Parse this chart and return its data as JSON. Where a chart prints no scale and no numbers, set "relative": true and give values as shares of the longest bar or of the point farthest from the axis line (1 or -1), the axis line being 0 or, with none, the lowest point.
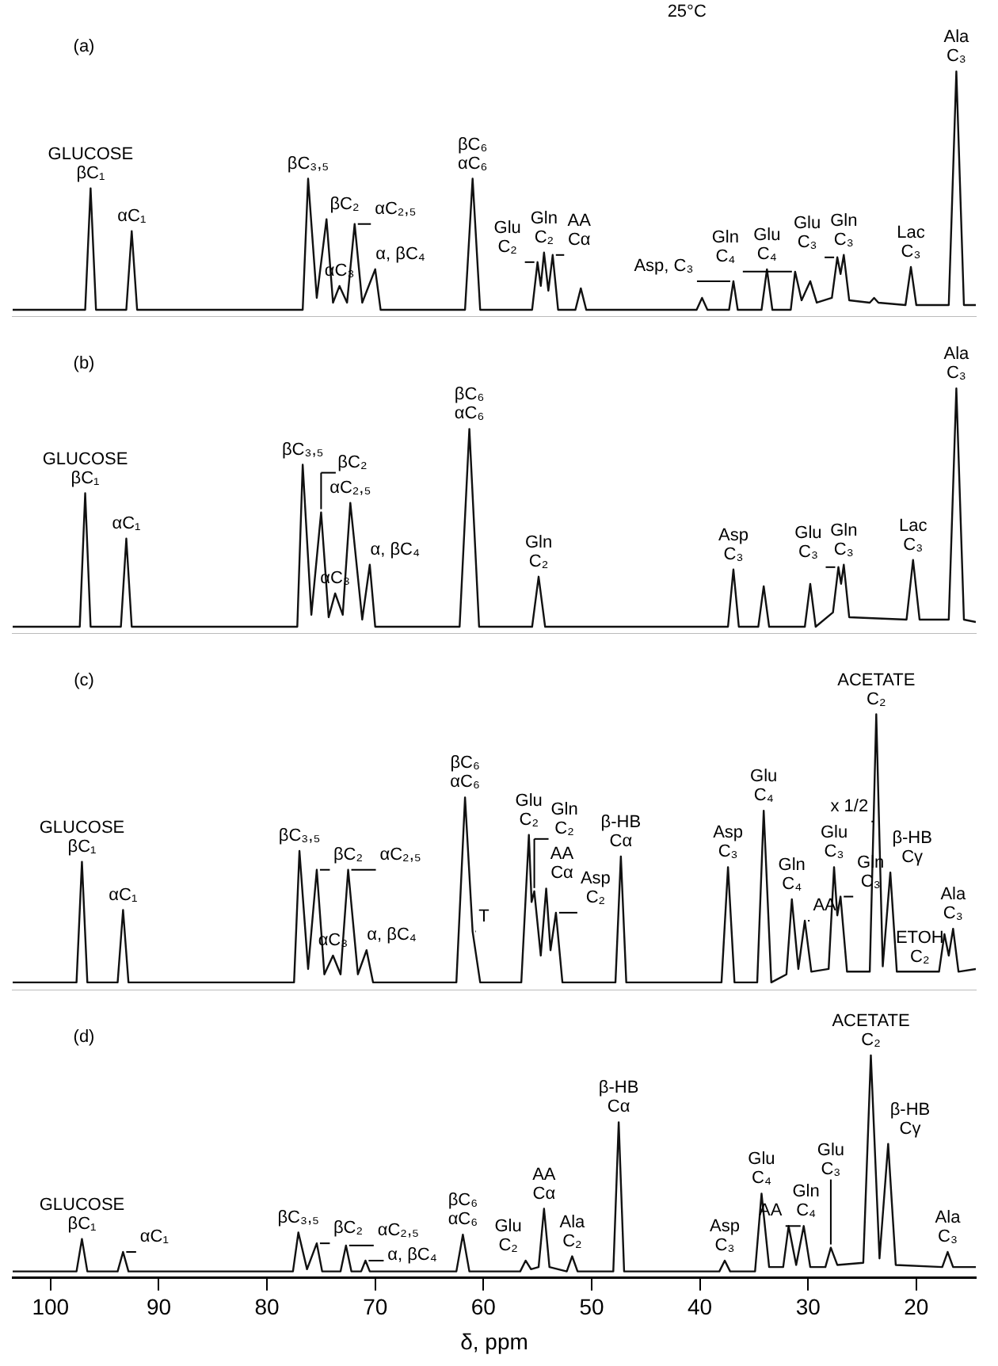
{
  "chart_data": [
    {
      "type": "line",
      "relative": true,
      "color": "#111111",
      "marker": "none",
      "tick_labels": false,
      "xlim": [
        103.5,
        14.5
      ],
      "x": [
        103.5,
        96.8,
        96.3,
        95.8,
        93.0,
        92.5,
        92.0,
        76.7,
        76.2,
        75.4,
        74.5,
        73.9,
        73.3,
        72.6,
        71.9,
        71.2,
        70.0,
        69.5,
        61.7,
        61.0,
        60.3,
        55.5,
        55.0,
        54.7,
        54.4,
        54.0,
        53.6,
        53.1,
        51.5,
        51.0,
        50.5,
        40.3,
        39.8,
        39.3,
        37.3,
        36.9,
        36.5,
        34.3,
        33.8,
        33.3,
        31.6,
        31.2,
        30.6,
        29.8,
        29.2,
        27.8,
        27.3,
        27.0,
        26.7,
        26.2,
        24.3,
        23.9,
        23.5,
        21.0,
        20.5,
        20.0,
        17.0,
        16.3,
        15.6,
        14.5
      ],
      "values": [
        0,
        0,
        0.51,
        0,
        0,
        0.33,
        0,
        0,
        0.55,
        0.05,
        0.38,
        0.03,
        0.1,
        0.03,
        0.36,
        0.03,
        0.17,
        0,
        0,
        0.55,
        0,
        0,
        0.2,
        0.1,
        0.24,
        0.08,
        0.23,
        0,
        0,
        0.09,
        0,
        0,
        0.05,
        0,
        0,
        0.12,
        0,
        0,
        0.17,
        0,
        0,
        0.16,
        0.04,
        0.12,
        0.03,
        0.05,
        0.22,
        0.15,
        0.23,
        0.04,
        0.03,
        0.05,
        0.03,
        0.02,
        0.18,
        0.02,
        0.02,
        1.0,
        0.02,
        0.02
      ],
      "annotations": [
        "(a)",
        "25°C",
        {
          "text": "GLUCOSE\nβC₁",
          "x": 96.3,
          "y": 0.51
        },
        {
          "text": "αC₁",
          "x": 92.5,
          "y": 0.33
        },
        {
          "text": "βC₃,₅",
          "x": 76.2,
          "y": 0.55
        },
        {
          "text": "βC₂",
          "x": 74.5,
          "y": 0.38
        },
        {
          "text": "αC₃",
          "x": 73.3,
          "y": 0.1
        },
        {
          "text": "αC₂,₅",
          "x": 71.9,
          "y": 0.36
        },
        {
          "text": "α, βC₄",
          "x": 70.0,
          "y": 0.17
        },
        {
          "text": "βC₆\nαC₆",
          "x": 61.0,
          "y": 0.55
        },
        {
          "text": "Glu\nC₂",
          "x": 55.0,
          "y": 0.2
        },
        {
          "text": "Gln\nC₂",
          "x": 54.4,
          "y": 0.24
        },
        {
          "text": "AA\nCα",
          "x": 53.6,
          "y": 0.23
        },
        {
          "text": "Asp, C₃",
          "x": 36.9,
          "y": 0.12
        },
        {
          "text": "Glu\nC₄",
          "x": 33.8,
          "y": 0.17
        },
        {
          "text": "Gln\nC₄",
          "x": 31.2,
          "y": 0.16
        },
        {
          "text": "Glu\nC₃",
          "x": 27.3,
          "y": 0.22
        },
        {
          "text": "Gln\nC₃",
          "x": 26.7,
          "y": 0.23
        },
        {
          "text": "Lac\nC₃",
          "x": 20.5,
          "y": 0.18
        },
        {
          "text": "Ala\nC₃",
          "x": 16.3,
          "y": 1.0
        }
      ]
    },
    {
      "type": "line",
      "relative": true,
      "color": "#111111",
      "marker": "none",
      "tick_labels": false,
      "xlim": [
        103.5,
        14.5
      ],
      "x": [
        103.5,
        97.3,
        96.8,
        96.3,
        93.5,
        93.0,
        92.5,
        77.2,
        76.7,
        75.9,
        75.0,
        74.3,
        73.7,
        73.0,
        72.3,
        71.2,
        70.5,
        70.0,
        62.2,
        61.3,
        60.4,
        55.5,
        54.9,
        54.3,
        37.4,
        36.9,
        36.4,
        34.6,
        34.1,
        33.6,
        30.3,
        29.8,
        29.3,
        27.7,
        27.2,
        26.95,
        26.7,
        26.2,
        20.9,
        20.3,
        19.7,
        17.0,
        16.3,
        15.6,
        14.5
      ],
      "values": [
        0,
        0,
        0.56,
        0,
        0,
        0.37,
        0,
        0,
        0.68,
        0.05,
        0.48,
        0.04,
        0.14,
        0.05,
        0.52,
        0.03,
        0.26,
        0,
        0,
        0.83,
        0,
        0,
        0.21,
        0,
        0,
        0.24,
        0,
        0,
        0.17,
        0,
        0,
        0.18,
        0,
        0.06,
        0.25,
        0.18,
        0.26,
        0.04,
        0.03,
        0.28,
        0.03,
        0.03,
        1.0,
        0.03,
        0.02
      ],
      "annotations": [
        "(b)",
        {
          "text": "GLUCOSE\nβC₁",
          "x": 96.8,
          "y": 0.56
        },
        {
          "text": "αC₁",
          "x": 93.0,
          "y": 0.37
        },
        {
          "text": "βC₃,₅",
          "x": 76.7,
          "y": 0.68
        },
        {
          "text": "βC₂",
          "x": 75.0,
          "y": 0.48
        },
        {
          "text": "αC₃",
          "x": 73.7,
          "y": 0.14
        },
        {
          "text": "αC₂,₅",
          "x": 72.3,
          "y": 0.52
        },
        {
          "text": "α, βC₄",
          "x": 70.5,
          "y": 0.26
        },
        {
          "text": "βC₆\nαC₆",
          "x": 61.3,
          "y": 0.83
        },
        {
          "text": "Gln\nC₂",
          "x": 54.9,
          "y": 0.21
        },
        {
          "text": "Asp\nC₃",
          "x": 36.9,
          "y": 0.24
        },
        {
          "text": "Glu\nC₃",
          "x": 27.2,
          "y": 0.25
        },
        {
          "text": "Gln\nC₃",
          "x": 26.7,
          "y": 0.26
        },
        {
          "text": "Lac\nC₃",
          "x": 20.3,
          "y": 0.28
        },
        {
          "text": "Ala\nC₃",
          "x": 16.3,
          "y": 1.0
        }
      ]
    },
    {
      "type": "line",
      "relative": true,
      "color": "#111111",
      "marker": "none",
      "tick_labels": false,
      "xlim": [
        103.5,
        14.5
      ],
      "x": [
        103.5,
        97.6,
        97.1,
        96.6,
        93.8,
        93.3,
        92.8,
        77.5,
        77.0,
        76.2,
        75.4,
        74.7,
        73.9,
        73.2,
        72.5,
        71.6,
        70.8,
        70.2,
        62.5,
        61.7,
        61.0,
        60.3,
        56.5,
        55.8,
        55.55,
        55.3,
        54.7,
        54.2,
        53.8,
        53.3,
        52.7,
        47.8,
        47.3,
        46.8,
        38.0,
        37.4,
        36.8,
        34.7,
        34.1,
        33.4,
        32.0,
        31.5,
        30.9,
        30.3,
        29.7,
        28.1,
        27.6,
        27.3,
        27.0,
        26.4,
        24.3,
        23.7,
        23.1,
        22.4,
        21.8,
        17.9,
        17.4,
        17.0,
        16.6,
        16.1,
        14.5
      ],
      "values": [
        0,
        0,
        0.45,
        0,
        0,
        0.27,
        0,
        0,
        0.49,
        0.05,
        0.42,
        0.03,
        0.1,
        0.03,
        0.42,
        0.03,
        0.12,
        0,
        0,
        0.69,
        0.19,
        0,
        0,
        0.55,
        0.3,
        0.34,
        0.1,
        0.35,
        0.12,
        0.26,
        0,
        0,
        0.47,
        0,
        0,
        0.43,
        0,
        0,
        0.64,
        0,
        0.03,
        0.31,
        0.05,
        0.23,
        0.04,
        0.05,
        0.43,
        0.25,
        0.32,
        0.04,
        0.04,
        1.0,
        0.06,
        0.41,
        0.04,
        0.04,
        0.18,
        0.1,
        0.2,
        0.04,
        0.05
      ],
      "annotations": [
        "(c)",
        {
          "text": "GLUCOSE\nβC₁",
          "x": 97.1,
          "y": 0.45
        },
        {
          "text": "αC₁",
          "x": 93.3,
          "y": 0.27
        },
        {
          "text": "βC₃,₅",
          "x": 77.0,
          "y": 0.49
        },
        {
          "text": "βC₂",
          "x": 75.4,
          "y": 0.42
        },
        {
          "text": "αC₃",
          "x": 73.9,
          "y": 0.1
        },
        {
          "text": "αC₂,₅",
          "x": 72.5,
          "y": 0.42
        },
        {
          "text": "α, βC₄",
          "x": 70.8,
          "y": 0.12
        },
        {
          "text": "βC₆\nαC₆",
          "x": 61.7,
          "y": 0.69
        },
        {
          "text": "T",
          "x": 61.0,
          "y": 0.19
        },
        {
          "text": "Glu\nC₂",
          "x": 55.8,
          "y": 0.55
        },
        {
          "text": "Gln\nC₂",
          "x": 55.3,
          "y": 0.34
        },
        {
          "text": "AA\nCα",
          "x": 54.2,
          "y": 0.35
        },
        {
          "text": "Asp\nC₂",
          "x": 53.3,
          "y": 0.26
        },
        {
          "text": "β-HB\nCα",
          "x": 47.3,
          "y": 0.47
        },
        {
          "text": "Asp\nC₃",
          "x": 37.4,
          "y": 0.43
        },
        {
          "text": "Glu\nC₄",
          "x": 34.1,
          "y": 0.64
        },
        {
          "text": "Gln\nC₄",
          "x": 31.5,
          "y": 0.31
        },
        {
          "text": "AA",
          "x": 30.3,
          "y": 0.23
        },
        {
          "text": "Glu\nC₃",
          "x": 27.6,
          "y": 0.43
        },
        {
          "text": "Gln\nC₃",
          "x": 27.0,
          "y": 0.32
        },
        {
          "text": "ACETATE\nC₂",
          "x": 23.7,
          "y": 1.0
        },
        {
          "text": "x 1/2",
          "x": 23.7,
          "y": 0.6
        },
        {
          "text": "β-HB\nCγ",
          "x": 22.4,
          "y": 0.41
        },
        {
          "text": "ETOH\nC₂",
          "x": 17.4,
          "y": 0.18
        },
        {
          "text": "Ala\nC₃",
          "x": 16.6,
          "y": 0.2
        }
      ]
    },
    {
      "type": "line",
      "relative": true,
      "color": "#111111",
      "marker": "none",
      "tick_labels": "x",
      "xlim": [
        103.5,
        14.5
      ],
      "xticks": [
        100,
        90,
        80,
        70,
        60,
        50,
        40,
        30,
        20
      ],
      "xlabel": "δ, ppm",
      "x": [
        103.5,
        97.6,
        97.1,
        96.6,
        93.8,
        93.3,
        92.8,
        77.6,
        77.1,
        76.3,
        75.4,
        74.9,
        73.2,
        72.7,
        72.2,
        71.3,
        70.9,
        70.5,
        62.5,
        61.9,
        61.3,
        56.6,
        56.1,
        55.6,
        54.9,
        54.4,
        53.9,
        52.3,
        51.8,
        51.3,
        48.0,
        47.5,
        47.0,
        38.2,
        37.7,
        37.2,
        34.9,
        34.3,
        33.6,
        32.3,
        31.8,
        31.1,
        30.4,
        29.8,
        28.4,
        27.9,
        27.3,
        24.9,
        24.2,
        23.4,
        22.6,
        21.9,
        17.6,
        17.1,
        16.6,
        14.5
      ],
      "values": [
        0,
        0,
        0.15,
        0,
        0,
        0.09,
        0,
        0,
        0.18,
        0.01,
        0.13,
        0,
        0,
        0.12,
        0,
        0,
        0.05,
        0,
        0,
        0.17,
        0,
        0,
        0.05,
        0.01,
        0.02,
        0.29,
        0.02,
        0,
        0.07,
        0,
        0,
        0.69,
        0,
        0,
        0.05,
        0,
        0,
        0.36,
        0.02,
        0.02,
        0.21,
        0.03,
        0.21,
        0.02,
        0.02,
        0.11,
        0.03,
        0.04,
        1.0,
        0.06,
        0.59,
        0.03,
        0.02,
        0.09,
        0.02,
        0.02
      ],
      "annotations": [
        "(d)",
        {
          "text": "GLUCOSE\nβC₁",
          "x": 97.1,
          "y": 0.15
        },
        {
          "text": "αC₁",
          "x": 93.3,
          "y": 0.09
        },
        {
          "text": "βC₃,₅",
          "x": 77.1,
          "y": 0.18
        },
        {
          "text": "βC₂",
          "x": 75.4,
          "y": 0.13
        },
        {
          "text": "αC₂,₅",
          "x": 72.7,
          "y": 0.12
        },
        {
          "text": "α, βC₄",
          "x": 70.9,
          "y": 0.05
        },
        {
          "text": "βC₆\nαC₆",
          "x": 61.9,
          "y": 0.17
        },
        {
          "text": "Glu\nC₂",
          "x": 56.1,
          "y": 0.05
        },
        {
          "text": "AA\nCα",
          "x": 54.4,
          "y": 0.29
        },
        {
          "text": "Ala\nC₂",
          "x": 51.8,
          "y": 0.07
        },
        {
          "text": "β-HB\nCα",
          "x": 47.5,
          "y": 0.69
        },
        {
          "text": "Asp\nC₃",
          "x": 37.7,
          "y": 0.05
        },
        {
          "text": "Glu\nC₄",
          "x": 34.3,
          "y": 0.36
        },
        {
          "text": "Gln\nC₄",
          "x": 31.8,
          "y": 0.21
        },
        {
          "text": "AA",
          "x": 30.4,
          "y": 0.21
        },
        {
          "text": "Glu\nC₃",
          "x": 27.9,
          "y": 0.11
        },
        {
          "text": "ACETATE\nC₂",
          "x": 24.2,
          "y": 1.0
        },
        {
          "text": "β-HB\nCγ",
          "x": 22.6,
          "y": 0.59
        },
        {
          "text": "Ala\nC₃",
          "x": 17.1,
          "y": 0.09
        }
      ]
    }
  ]
}
